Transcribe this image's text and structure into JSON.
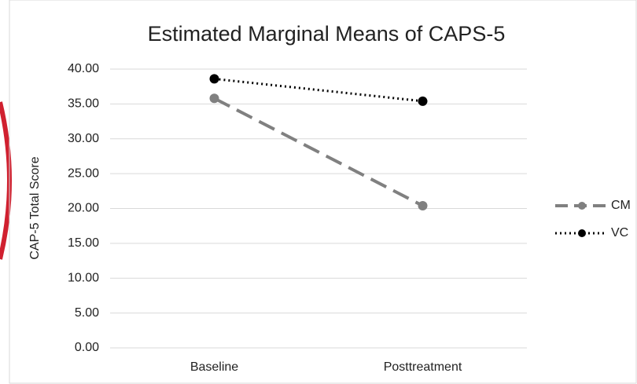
{
  "chart_data": {
    "type": "line",
    "title": "Estimated Marginal Means of CAPS-5",
    "y_label": "CAP-5 Total Score",
    "categories": [
      "Baseline",
      "Posttreatment"
    ],
    "series": [
      {
        "name": "CM",
        "color": "#808080",
        "line_style": "dashed",
        "values": [
          35.8,
          20.4
        ]
      },
      {
        "name": "VC",
        "color": "#000000",
        "line_style": "dotted",
        "values": [
          38.6,
          35.4
        ]
      }
    ],
    "ylim": [
      0,
      40
    ],
    "yticks": [
      {
        "value": 0,
        "label": "0.00"
      },
      {
        "value": 5,
        "label": "5.00"
      },
      {
        "value": 10,
        "label": "10.00"
      },
      {
        "value": 15,
        "label": "15.00"
      },
      {
        "value": 20,
        "label": "20.00"
      },
      {
        "value": 25,
        "label": "25.00"
      },
      {
        "value": 30,
        "label": "30.00"
      },
      {
        "value": 35,
        "label": "35.00"
      },
      {
        "value": 40,
        "label": "40.00"
      }
    ],
    "grid": true,
    "legend": "right"
  }
}
